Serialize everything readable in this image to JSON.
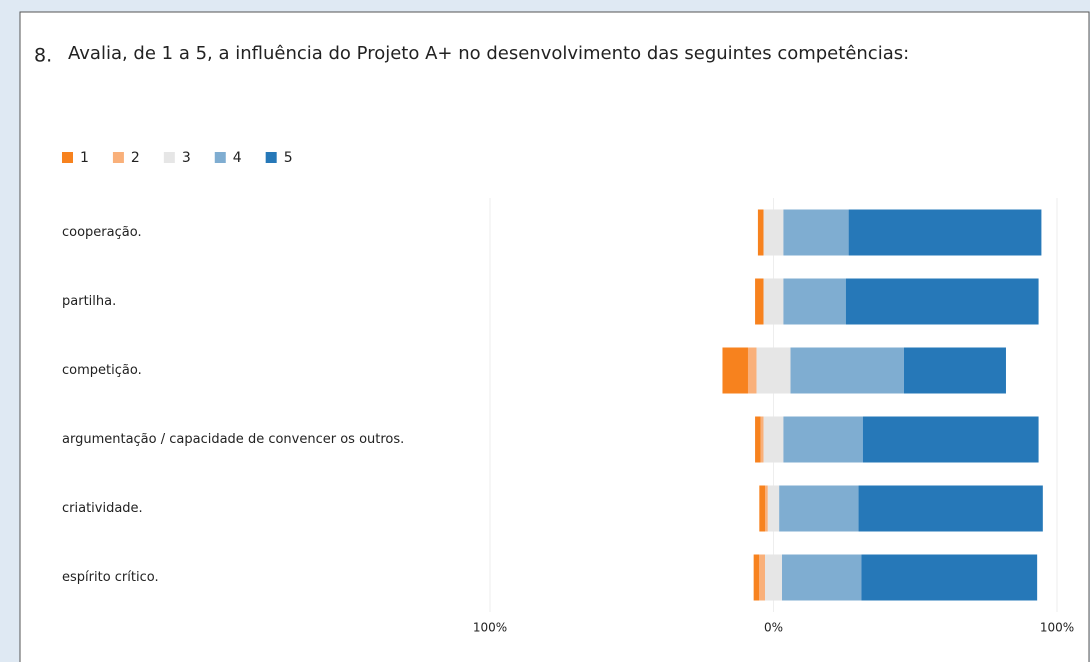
{
  "chart_data": {
    "type": "diverging_bar",
    "question_number": "8.",
    "title": "Avalia, de 1 a 5, a influência do Projeto A+ no desenvolvimento das seguintes competências:",
    "categories": [
      "cooperação.",
      "partilha.",
      "competição.",
      "argumentação / capacidade de convencer os outros.",
      "criatividade.",
      "espírito crítico."
    ],
    "series": [
      {
        "name": "1",
        "color": "#f7821e",
        "values": [
          2,
          3,
          9,
          2,
          2,
          2
        ]
      },
      {
        "name": "2",
        "color": "#f9b07a",
        "values": [
          0,
          0,
          3,
          1,
          1,
          2
        ]
      },
      {
        "name": "3",
        "color": "#e6e6e6",
        "values": [
          7,
          7,
          12,
          7,
          4,
          6
        ]
      },
      {
        "name": "4",
        "color": "#7fadd1",
        "values": [
          23,
          22,
          40,
          28,
          28,
          28
        ]
      },
      {
        "name": "5",
        "color": "#2678b8",
        "values": [
          68,
          68,
          36,
          62,
          65,
          62
        ]
      }
    ],
    "neutral_series": 2,
    "xlim": [
      -100,
      100
    ],
    "xticks": [
      {
        "value": -100,
        "label": "100%"
      },
      {
        "value": 0,
        "label": "0%"
      },
      {
        "value": 100,
        "label": "100%"
      }
    ],
    "grid": true,
    "legend": "top-left"
  }
}
